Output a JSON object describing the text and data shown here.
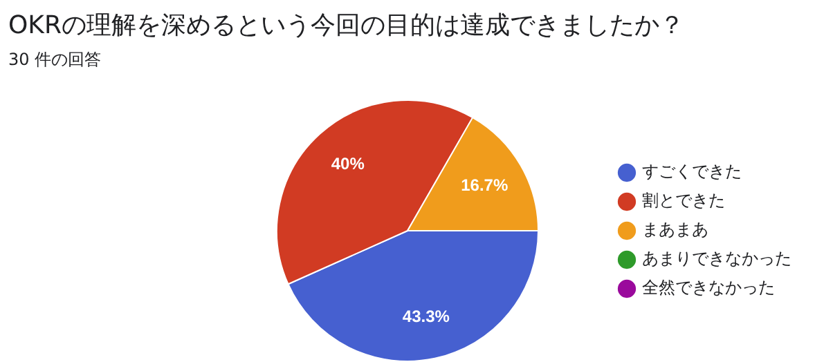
{
  "chart_data": {
    "type": "pie",
    "title": "OKRの理解を深めるという今回の目的は達成できましたか？",
    "subtitle": "30 件の回答",
    "categories": [
      "すごくできた",
      "割とできた",
      "まあまあ",
      "あまりできなかった",
      "全然できなかった"
    ],
    "values": [
      43.3,
      40,
      16.7,
      0,
      0
    ],
    "colors": [
      "#4660d0",
      "#d13b23",
      "#f09c1c",
      "#2e9a2a",
      "#9a0a9c"
    ],
    "value_labels": [
      "43.3%",
      "40%",
      "16.7%",
      null,
      null
    ],
    "legend": "right"
  }
}
